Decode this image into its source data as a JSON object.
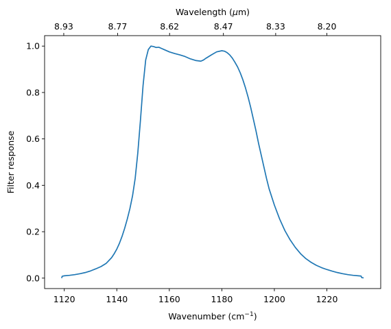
{
  "chart_data": {
    "type": "line",
    "xlabel": "Wavenumber (cm",
    "xlabel_sup": "−1",
    "xlabel_end": ")",
    "ylabel": "Filter response",
    "top_xlabel": "Wavelength (",
    "top_xlabel_mu": "μ",
    "top_xlabel_end": "m)",
    "xlim": [
      1112.5,
      1240.5
    ],
    "ylim": [
      -0.045,
      1.045
    ],
    "x_ticks": [
      1120,
      1140,
      1160,
      1180,
      1200,
      1220
    ],
    "x_tick_labels": [
      "1120",
      "1140",
      "1160",
      "1180",
      "1200",
      "1220"
    ],
    "y_ticks": [
      0.0,
      0.2,
      0.4,
      0.6,
      0.8,
      1.0
    ],
    "y_tick_labels": [
      "0.0",
      "0.2",
      "0.4",
      "0.6",
      "0.8",
      "1.0"
    ],
    "top_ticks_wavenumber": [
      1119.8,
      1140.3,
      1160.1,
      1180.6,
      1200.5,
      1220.0
    ],
    "top_tick_labels": [
      "8.93",
      "8.77",
      "8.62",
      "8.47",
      "8.33",
      "8.20"
    ],
    "line_color": "#1f77b4",
    "grid": false,
    "series": [
      {
        "x": [
          1119.0,
          1119.2,
          1120,
          1122,
          1124,
          1126,
          1128,
          1130,
          1132,
          1134,
          1136,
          1138,
          1139,
          1140,
          1141,
          1142,
          1143,
          1144,
          1145,
          1146,
          1147,
          1148,
          1149,
          1150,
          1151,
          1152,
          1153,
          1154,
          1155,
          1156,
          1157,
          1158,
          1160,
          1162,
          1164,
          1166,
          1168,
          1170,
          1172,
          1173,
          1174,
          1176,
          1178,
          1180,
          1181,
          1182,
          1183,
          1184,
          1185,
          1186,
          1187,
          1188,
          1189,
          1190,
          1191,
          1192,
          1193,
          1194,
          1195,
          1196,
          1197,
          1198,
          1200,
          1202,
          1204,
          1206,
          1208,
          1210,
          1212,
          1214,
          1216,
          1218,
          1220,
          1222,
          1224,
          1226,
          1228,
          1230,
          1232,
          1233,
          1233.3,
          1234
        ],
        "y": [
          0.0,
          0.008,
          0.01,
          0.012,
          0.015,
          0.019,
          0.024,
          0.031,
          0.04,
          0.05,
          0.064,
          0.088,
          0.105,
          0.125,
          0.15,
          0.18,
          0.215,
          0.255,
          0.3,
          0.355,
          0.43,
          0.54,
          0.68,
          0.83,
          0.94,
          0.985,
          1.0,
          0.998,
          0.994,
          0.995,
          0.99,
          0.985,
          0.975,
          0.968,
          0.962,
          0.955,
          0.945,
          0.938,
          0.935,
          0.94,
          0.948,
          0.962,
          0.975,
          0.98,
          0.978,
          0.972,
          0.962,
          0.948,
          0.93,
          0.91,
          0.885,
          0.855,
          0.82,
          0.78,
          0.735,
          0.685,
          0.635,
          0.58,
          0.53,
          0.48,
          0.43,
          0.385,
          0.315,
          0.255,
          0.205,
          0.165,
          0.132,
          0.105,
          0.084,
          0.068,
          0.055,
          0.045,
          0.037,
          0.03,
          0.024,
          0.019,
          0.015,
          0.012,
          0.01,
          0.009,
          0.002,
          0.001
        ]
      }
    ]
  }
}
